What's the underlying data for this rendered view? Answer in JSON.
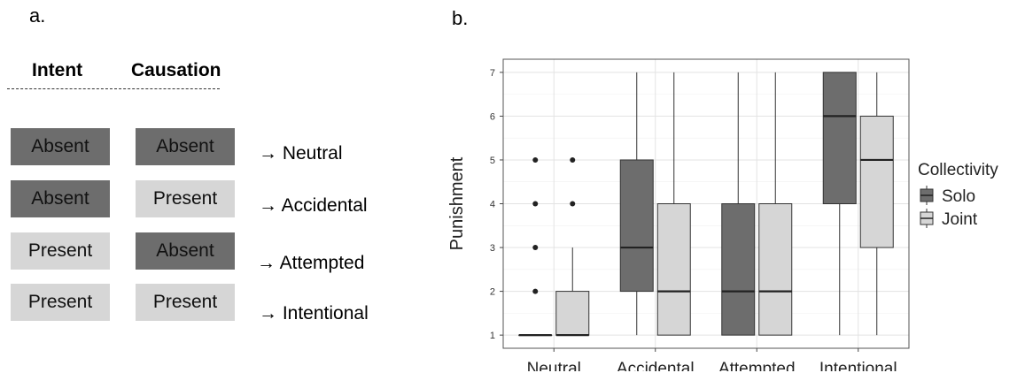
{
  "panel_a": {
    "label": "a.",
    "header_intent": "Intent",
    "header_causation": "Causation",
    "colors": {
      "absent": "#6d6d6d",
      "present": "#d6d6d6"
    },
    "rows": [
      {
        "intent": "Absent",
        "causation": "Absent",
        "outcome": "→ Neutral"
      },
      {
        "intent": "Absent",
        "causation": "Present",
        "outcome": "→ Accidental"
      },
      {
        "intent": "Present",
        "causation": "Absent",
        "outcome": "→ Attempted"
      },
      {
        "intent": "Present",
        "causation": "Present",
        "outcome": "→ Intentional"
      }
    ]
  },
  "panel_b": {
    "label": "b."
  },
  "chart_data": {
    "type": "box",
    "ylabel": "Punishment",
    "xlabel": "",
    "ylim": [
      0.7,
      7.3
    ],
    "yticks": [
      "1",
      "2",
      "3",
      "4",
      "5",
      "6",
      "7"
    ],
    "categories": [
      "Neutral",
      "Accidental",
      "Attempted",
      "Intentional"
    ],
    "grid": true,
    "legend": {
      "title": "Collectivity",
      "position": "right"
    },
    "series": [
      {
        "name": "Solo",
        "color": "#6d6d6d",
        "boxes": [
          {
            "category": "Neutral",
            "min": 1,
            "q1": 1,
            "median": 1,
            "q3": 1,
            "max": 1,
            "outliers": [
              2,
              3,
              4,
              5
            ]
          },
          {
            "category": "Accidental",
            "min": 1,
            "q1": 2,
            "median": 3,
            "q3": 5,
            "max": 7,
            "outliers": []
          },
          {
            "category": "Attempted",
            "min": 1,
            "q1": 1,
            "median": 2,
            "q3": 4,
            "max": 7,
            "outliers": []
          },
          {
            "category": "Intentional",
            "min": 1,
            "q1": 4,
            "median": 6,
            "q3": 7,
            "max": 7,
            "outliers": []
          }
        ]
      },
      {
        "name": "Joint",
        "color": "#d6d6d6",
        "boxes": [
          {
            "category": "Neutral",
            "min": 1,
            "q1": 1,
            "median": 1,
            "q3": 2,
            "max": 3,
            "outliers": [
              4,
              5
            ]
          },
          {
            "category": "Accidental",
            "min": 1,
            "q1": 1,
            "median": 2,
            "q3": 4,
            "max": 7,
            "outliers": []
          },
          {
            "category": "Attempted",
            "min": 1,
            "q1": 1,
            "median": 2,
            "q3": 4,
            "max": 7,
            "outliers": []
          },
          {
            "category": "Intentional",
            "min": 1,
            "q1": 3,
            "median": 5,
            "q3": 6,
            "max": 7,
            "outliers": []
          }
        ]
      }
    ]
  }
}
